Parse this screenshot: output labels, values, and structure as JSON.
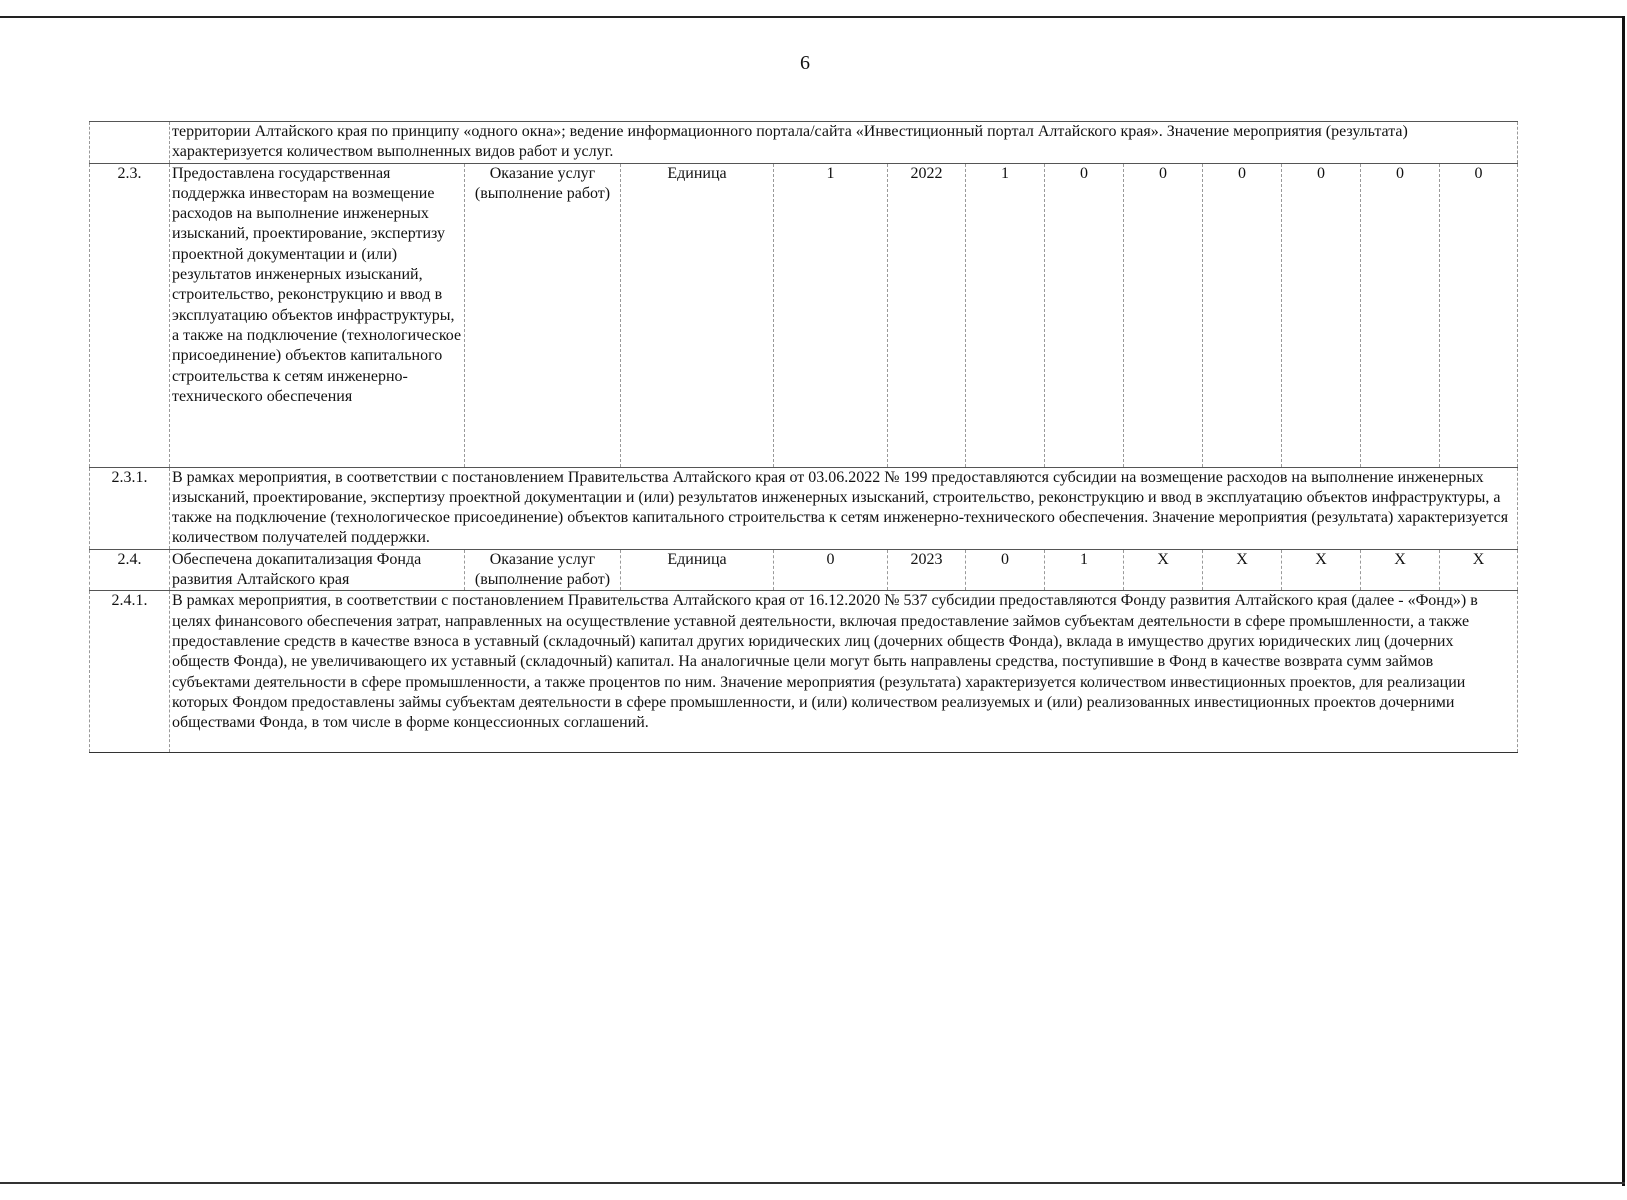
{
  "page_number": "6",
  "rows": [
    {
      "number": "",
      "text": "территории Алтайского края по принципу «одного окна»; ведение информационного портала/сайта «Инвестиционный портал Алтайского края». Значение мероприятия (результата) характеризуется количеством выполненных видов работ и услуг."
    },
    {
      "number": "2.3.",
      "name": "Предоставлена государственная поддержка инвесторам на возмещение расходов на выполнение инженерных изысканий, проектирование, экспертизу проектной документации и (или) результатов инженерных изысканий, строительство, реконструкцию и ввод в эксплуатацию объектов инфраструктуры, а также на подключение (технологическое присоединение) объектов капитального строительства к сетям инженерно-технического обеспечения",
      "type": "Оказание услуг (выполнение работ)",
      "unit": "Единица",
      "values": [
        "1",
        "2022",
        "1",
        "0",
        "0",
        "0",
        "0",
        "0",
        "0"
      ]
    },
    {
      "number": "2.3.1.",
      "text": "В рамках мероприятия, в соответствии с постановлением Правительства Алтайского края от 03.06.2022 № 199 предоставляются субсидии на возмещение расходов на выполнение инженерных изысканий, проектирование, экспертизу проектной документации и (или) результатов инженерных изысканий, строительство, реконструкцию и ввод в эксплуатацию объектов инфраструктуры, а также на подключение (технологическое присоединение) объектов капитального строительства к сетям инженерно-технического обеспечения. Значение мероприятия (результата) характеризуется количеством получателей поддержки."
    },
    {
      "number": "2.4.",
      "name": "Обеспечена докапитализация Фонда развития Алтайского края",
      "type": "Оказание услуг (выполнение работ)",
      "unit": "Единица",
      "values": [
        "0",
        "2023",
        "0",
        "1",
        "X",
        "X",
        "X",
        "X",
        "X"
      ]
    },
    {
      "number": "2.4.1.",
      "text": "В рамках мероприятия, в соответствии с постановлением Правительства Алтайского края от 16.12.2020 № 537 субсидии предоставляются Фонду развития Алтайского края (далее - «Фонд») в целях финансового обеспечения затрат, направленных на осуществление уставной деятельности, включая предоставление займов субъектам деятельности в сфере промышленности, а также предоставление средств в качестве взноса в уставный (складочный) капитал других юридических лиц (дочерних обществ Фонда), вклада в имущество других юридических лиц (дочерних обществ Фонда), не увеличивающего их уставный (складочный) капитал. На аналогичные цели могут быть направлены средства, поступившие в Фонд в качестве возврата сумм займов субъектами деятельности в сфере промышленности, а также процентов по ним. Значение мероприятия (результата) характеризуется количеством инвестиционных проектов, для реализации которых Фондом предоставлены займы субъектам деятельности в сфере промышленности, и (или) количеством реализуемых и (или) реализованных инвестиционных проектов дочерними обществами Фонда, в том числе в форме концессионных соглашений."
    }
  ]
}
